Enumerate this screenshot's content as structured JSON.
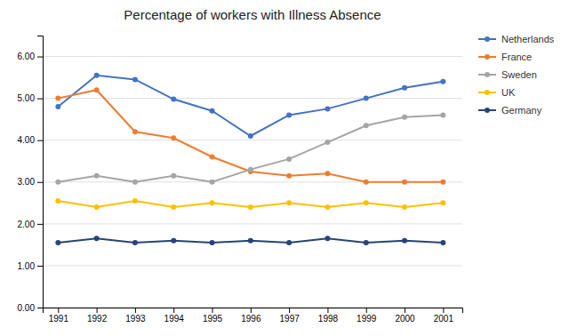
{
  "chart_data": {
    "type": "line",
    "title": "Percentage of workers with Illness Absence",
    "x": [
      1991,
      1992,
      1993,
      1994,
      1995,
      1996,
      1997,
      1998,
      1999,
      2000,
      2001
    ],
    "xlim": [
      1990.6,
      2001.5
    ],
    "xticks": [
      1991,
      1992,
      1993,
      1994,
      1995,
      1996,
      1997,
      1998,
      1999,
      2000,
      2001
    ],
    "ylim": [
      0.0,
      6.5
    ],
    "yticks": [
      {
        "value": 0.0,
        "label": "0.00"
      },
      {
        "value": 1.0,
        "label": "1.00"
      },
      {
        "value": 2.0,
        "label": "2.00"
      },
      {
        "value": 3.0,
        "label": "3.00"
      },
      {
        "value": 4.0,
        "label": "4.00"
      },
      {
        "value": 5.0,
        "label": "5.00"
      },
      {
        "value": 6.0,
        "label": "6.00"
      }
    ],
    "grid": "y",
    "legend": "right",
    "series": [
      {
        "name": "Netherlands",
        "color": "#4472C4",
        "marker": "circle",
        "values": [
          4.8,
          5.55,
          5.45,
          4.98,
          4.7,
          4.1,
          4.6,
          4.75,
          5.0,
          5.25,
          5.4
        ]
      },
      {
        "name": "France",
        "color": "#ED7D31",
        "marker": "circle",
        "values": [
          5.0,
          5.2,
          4.2,
          4.05,
          3.6,
          3.25,
          3.15,
          3.2,
          3.0,
          3.0,
          3.0
        ]
      },
      {
        "name": "Sweden",
        "color": "#A5A5A5",
        "marker": "circle",
        "values": [
          3.0,
          3.15,
          3.0,
          3.15,
          3.0,
          3.3,
          3.55,
          3.95,
          4.35,
          4.55,
          4.6
        ]
      },
      {
        "name": "UK",
        "color": "#FFC000",
        "marker": "circle",
        "values": [
          2.55,
          2.4,
          2.55,
          2.4,
          2.5,
          2.4,
          2.5,
          2.4,
          2.5,
          2.4,
          2.5
        ]
      },
      {
        "name": "Germany",
        "color": "#264478",
        "marker": "circle",
        "values": [
          1.55,
          1.65,
          1.55,
          1.6,
          1.55,
          1.6,
          1.55,
          1.65,
          1.55,
          1.6,
          1.55
        ]
      }
    ]
  }
}
